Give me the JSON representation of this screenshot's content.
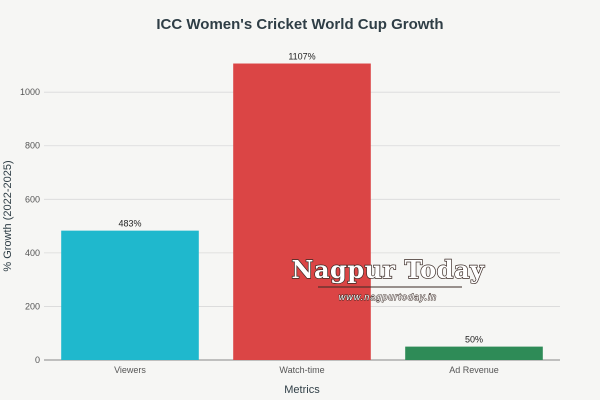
{
  "chart_data": {
    "type": "bar",
    "title": "ICC Women's Cricket World Cup Growth",
    "xlabel": "Metrics",
    "ylabel": "% Growth (2022-2025)",
    "categories": [
      "Viewers",
      "Watch-time",
      "Ad Revenue"
    ],
    "values": [
      483,
      1107,
      50
    ],
    "data_labels": [
      "483%",
      "1107%",
      "50%"
    ],
    "colors": [
      "#1fb8cd",
      "#db4545",
      "#2e8b57"
    ],
    "ylim": [
      0,
      1150
    ],
    "yticks": [
      0,
      200,
      400,
      600,
      800,
      1000
    ],
    "grid": true,
    "legend": "none"
  },
  "watermark": {
    "brand": "Nagpur Today",
    "url": "www.nagpurtoday.in"
  }
}
